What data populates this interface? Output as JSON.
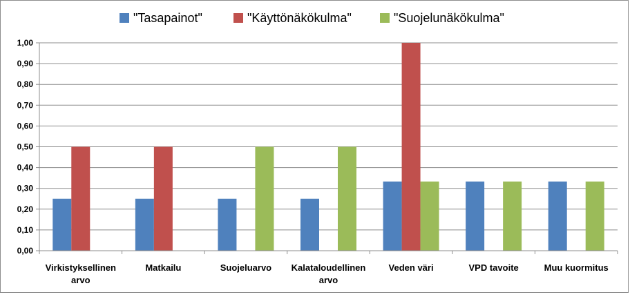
{
  "chart_data": {
    "type": "bar",
    "title": "",
    "xlabel": "",
    "ylabel": "",
    "ylim": [
      0,
      1
    ],
    "ytick_step": 0.1,
    "grid": true,
    "legend_position": "top",
    "categories": [
      [
        "Virkistyksellinen",
        "arvo"
      ],
      [
        "Matkailu"
      ],
      [
        "Suojeluarvo"
      ],
      [
        "Kalataloudellinen",
        "arvo"
      ],
      [
        "Veden väri"
      ],
      [
        "VPD tavoite"
      ],
      [
        "Muu kuormitus"
      ]
    ],
    "ytick_labels": [
      "0,00",
      "0,10",
      "0,20",
      "0,30",
      "0,40",
      "0,50",
      "0,60",
      "0,70",
      "0,80",
      "0,90",
      "1,00"
    ],
    "series": [
      {
        "name": "\"Tasapainot\"",
        "color": "#4f81bd",
        "values": [
          0.25,
          0.25,
          0.25,
          0.25,
          0.333,
          0.333,
          0.333
        ]
      },
      {
        "name": "\"Käyttönäkökulma\"",
        "color": "#c0504d",
        "values": [
          0.5,
          0.5,
          0,
          0,
          1.0,
          0,
          0
        ]
      },
      {
        "name": "\"Suojelunäkökulma\"",
        "color": "#9bbb59",
        "values": [
          0,
          0,
          0.5,
          0.5,
          0.333,
          0.333,
          0.333
        ]
      }
    ]
  }
}
